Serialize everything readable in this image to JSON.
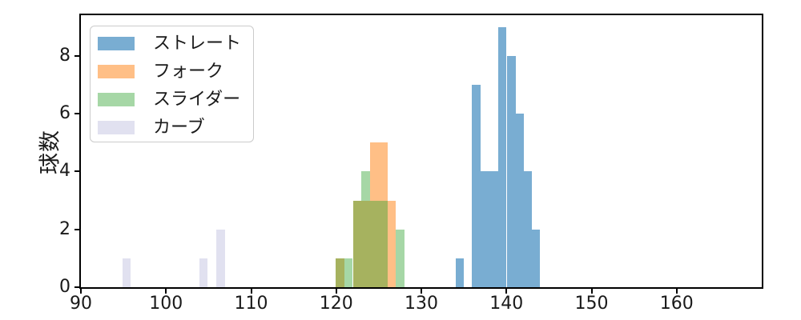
{
  "chart_data": {
    "type": "bar",
    "subtype": "histogram",
    "title": "",
    "xlabel": "",
    "ylabel": "球数",
    "xlim": [
      90,
      170
    ],
    "ylim": [
      0,
      9.4
    ],
    "x_ticks": [
      90,
      100,
      110,
      120,
      130,
      140,
      150,
      160
    ],
    "y_ticks": [
      0,
      2,
      4,
      6,
      8
    ],
    "grid": false,
    "legend_position": "upper left",
    "axis_color": "#000000",
    "text_color": "#1a1a1a",
    "series": [
      {
        "key": "straight",
        "label": "ストレート",
        "color": "rgba(31,119,180,0.6)",
        "bars": [
          {
            "x0": 134.0,
            "x1": 134.95,
            "count": 1
          },
          {
            "x0": 135.97,
            "x1": 136.94,
            "count": 7
          },
          {
            "x0": 136.94,
            "x1": 137.99,
            "count": 4
          },
          {
            "x0": 137.99,
            "x1": 139.05,
            "count": 4
          },
          {
            "x0": 139.05,
            "x1": 140.02,
            "count": 9
          },
          {
            "x0": 140.02,
            "x1": 141.06,
            "count": 8
          },
          {
            "x0": 141.06,
            "x1": 142.02,
            "count": 6
          },
          {
            "x0": 142.02,
            "x1": 142.95,
            "count": 4
          },
          {
            "x0": 142.95,
            "x1": 143.9,
            "count": 2
          }
        ]
      },
      {
        "key": "fork",
        "label": "フォーク",
        "color": "rgba(255,127,14,0.5)",
        "bars": [
          {
            "x0": 119.9,
            "x1": 120.94,
            "count": 1
          },
          {
            "x0": 121.95,
            "x1": 123.99,
            "count": 3
          },
          {
            "x0": 123.99,
            "x1": 126.06,
            "count": 5
          },
          {
            "x0": 126.06,
            "x1": 126.95,
            "count": 3
          }
        ]
      },
      {
        "key": "slider",
        "label": "スライダー",
        "color": "rgba(44,160,44,0.42)",
        "bars": [
          {
            "x0": 119.9,
            "x1": 120.94,
            "count": 1
          },
          {
            "x0": 120.94,
            "x1": 121.95,
            "count": 1
          },
          {
            "x0": 121.95,
            "x1": 122.96,
            "count": 3
          },
          {
            "x0": 122.96,
            "x1": 123.99,
            "count": 4
          },
          {
            "x0": 123.99,
            "x1": 126.06,
            "count": 3
          },
          {
            "x0": 126.95,
            "x1": 128.0,
            "count": 2
          }
        ]
      },
      {
        "key": "curve",
        "label": "カーブ",
        "color": "rgba(206,206,231,0.62)",
        "bars": [
          {
            "x0": 94.87,
            "x1": 95.87,
            "count": 1
          },
          {
            "x0": 103.89,
            "x1": 104.89,
            "count": 1
          },
          {
            "x0": 105.93,
            "x1": 106.97,
            "count": 2
          }
        ]
      }
    ]
  }
}
